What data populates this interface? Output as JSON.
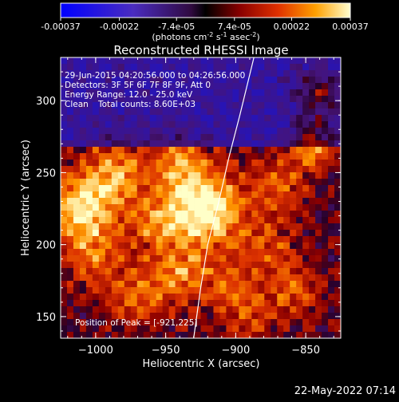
{
  "colorbar": {
    "tick_labels": [
      "-0.00037",
      "-0.00022",
      "-7.4e-05",
      "7.4e-05",
      "0.00022",
      "0.00037"
    ],
    "tick_values": [
      -0.00037,
      -0.00022,
      -7.4e-05,
      7.4e-05,
      0.00022,
      0.00037
    ],
    "unit_text": "(photons cm",
    "unit_sup1": "-2",
    "unit_mid": " s",
    "unit_sup2": "-1",
    "unit_end": " asec",
    "unit_sup3": "-2",
    "unit_close": ")"
  },
  "annotations": {
    "time_range": "29-Jun-2015 04:20:56.000 to 04:26:56.000",
    "detectors": "Detectors: 3F 5F 6F 7F 8F 9F, Att 0",
    "energy": "Energy Range: 12.0 - 25.0 keV",
    "clean_label": "Clean",
    "total_counts": "Total counts: 8.60E+03",
    "peak": "Position of Peak = [-921,225]"
  },
  "footer": {
    "timestamp": "22-May-2022 07:14"
  },
  "chart_data": {
    "type": "heatmap",
    "title": "Reconstructed RHESSI Image",
    "xlabel": "Heliocentric X (arcsec)",
    "ylabel": "Heliocentric Y (arcsec)",
    "xlim": [
      -1025,
      -825
    ],
    "ylim": [
      135,
      330
    ],
    "x_ticks": [
      -1000,
      -950,
      -900,
      -850
    ],
    "x_tick_labels": [
      "−1000",
      "−950",
      "−900",
      "−850"
    ],
    "y_ticks": [
      150,
      200,
      250,
      300
    ],
    "y_tick_labels": [
      "150",
      "200",
      "250",
      "300"
    ],
    "value_range": [
      -0.00037,
      0.00037
    ],
    "peak_position": [
      -921,
      225
    ],
    "limb_curve": [
      [
        -930,
        135
      ],
      [
        -925,
        170
      ],
      [
        -920,
        200
      ],
      [
        -912,
        230
      ],
      [
        -905,
        260
      ],
      [
        -897,
        290
      ],
      [
        -887,
        330
      ]
    ],
    "colors": {
      "low": "#0000ff",
      "mid_low": "#6a1fa0",
      "zero": "#000000",
      "mid_high": "#e03000",
      "high": "#ffffd0"
    }
  }
}
